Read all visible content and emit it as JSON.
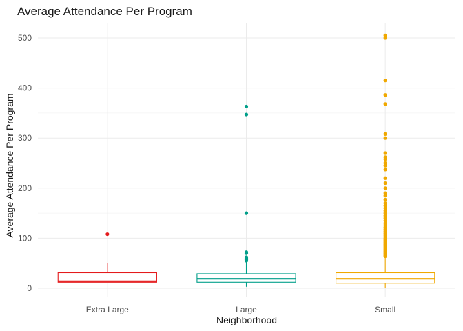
{
  "chart_data": {
    "type": "boxplot",
    "title": "Average Attendance Per Program",
    "xlabel": "Neighborhood",
    "ylabel": "Average Attendance Per Program",
    "categories": [
      "Extra Large",
      "Large",
      "Small"
    ],
    "ylim": [
      -20,
      530
    ],
    "yticks": [
      0,
      100,
      200,
      300,
      400,
      500
    ],
    "ytick_labels": [
      "0",
      "100",
      "200",
      "300",
      "400",
      "500"
    ],
    "grid": true,
    "legend": "none",
    "boxes": [
      {
        "category": "Extra Large",
        "color": "#E41A1C",
        "whisker_low": 12,
        "q1": 12,
        "median": 14,
        "q3": 31,
        "whisker_high": 50,
        "outliers": [
          108
        ]
      },
      {
        "category": "Large",
        "color": "#009E89",
        "whisker_low": 3,
        "q1": 12,
        "median": 19,
        "q3": 29,
        "whisker_high": 53,
        "outliers": [
          55,
          57,
          60,
          62,
          70,
          72,
          150,
          347,
          363
        ]
      },
      {
        "category": "Small",
        "color": "#F0A800",
        "whisker_low": 1,
        "q1": 10,
        "median": 19,
        "q3": 31,
        "whisker_high": 62,
        "outliers": [
          64,
          66,
          68,
          70,
          72,
          74,
          76,
          78,
          80,
          82,
          84,
          86,
          88,
          90,
          92,
          94,
          96,
          98,
          100,
          103,
          106,
          110,
          114,
          118,
          122,
          126,
          130,
          135,
          140,
          145,
          150,
          155,
          160,
          165,
          170,
          177,
          185,
          190,
          200,
          210,
          220,
          237,
          245,
          250,
          258,
          262,
          270,
          300,
          308,
          368,
          386,
          415,
          500,
          505
        ]
      }
    ]
  }
}
